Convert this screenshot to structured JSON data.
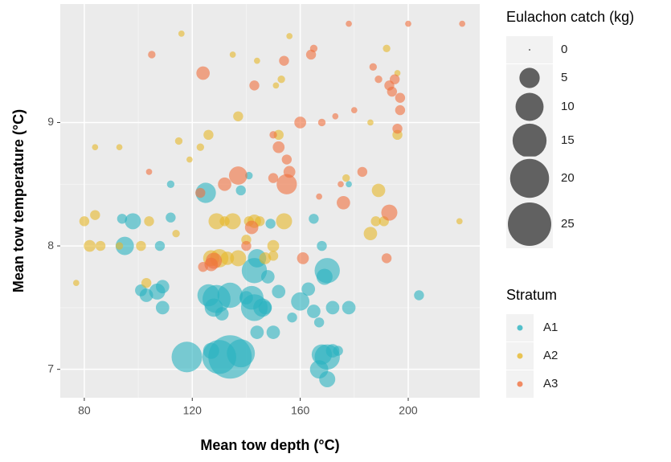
{
  "chart_data": {
    "type": "scatter",
    "x_label": "Mean tow depth (°C)",
    "y_label": "Mean tow temperature (°C)",
    "xlim": [
      71.1,
      226.5
    ],
    "ylim": [
      6.77,
      9.96
    ],
    "xticks": [
      80,
      120,
      160,
      200
    ],
    "yticks": [
      7,
      8,
      9
    ],
    "grid": true,
    "size_legend": {
      "title": "Eulachon catch (kg)",
      "breaks": [
        0,
        5,
        10,
        15,
        20,
        25
      ]
    },
    "color_legend_title": "Stratum",
    "series": [
      {
        "name": "A1",
        "color": "#2ab3c0",
        "x": [
          118,
          134,
          130,
          138,
          127,
          168,
          170,
          167,
          170,
          172,
          174,
          101,
          103,
          107,
          109,
          109,
          126,
          129,
          134,
          128,
          131,
          142,
          143,
          146,
          140,
          160,
          163,
          165,
          172,
          178,
          143,
          144,
          148,
          152,
          170,
          169,
          168,
          95,
          98,
          94,
          108,
          112,
          125,
          138,
          149,
          165,
          204,
          112,
          141,
          147,
          150,
          144,
          157,
          167,
          178
        ],
        "values": [
          7.1,
          7.1,
          7.1,
          7.13,
          7.15,
          7.12,
          7.1,
          7.0,
          6.92,
          7.15,
          7.15,
          7.64,
          7.6,
          7.63,
          7.67,
          7.5,
          7.6,
          7.57,
          7.6,
          7.5,
          7.45,
          7.58,
          7.5,
          7.5,
          7.58,
          7.55,
          7.65,
          7.47,
          7.5,
          7.5,
          7.8,
          7.9,
          7.75,
          7.63,
          7.8,
          7.75,
          8.0,
          8.0,
          8.2,
          8.22,
          8.0,
          8.23,
          8.43,
          8.45,
          8.18,
          8.22,
          7.6,
          8.5,
          8.57,
          7.5,
          7.3,
          7.3,
          7.42,
          7.38,
          8.5
        ],
        "sizes": [
          12,
          25,
          15,
          10,
          3,
          5,
          8,
          4,
          3,
          2,
          1,
          1.5,
          2,
          3,
          2,
          2,
          6,
          10,
          8,
          4,
          2,
          7,
          9,
          4,
          2,
          4,
          2,
          2,
          2,
          2,
          8,
          4,
          2,
          2,
          8,
          3,
          1,
          4,
          3,
          1,
          1,
          1,
          5,
          1,
          1,
          1,
          1,
          0.5,
          0.5,
          2,
          2,
          2,
          1,
          1,
          0.3
        ]
      },
      {
        "name": "A2",
        "color": "#e6b82a",
        "x": [
          77,
          80,
          82,
          84,
          86,
          84,
          93,
          93,
          101,
          104,
          103,
          114,
          116,
          115,
          119,
          123,
          126,
          129,
          132,
          135,
          140,
          141,
          143,
          145,
          154,
          150,
          152,
          147,
          150,
          127,
          130,
          133,
          137,
          137,
          135,
          151,
          153,
          156,
          186,
          188,
          191,
          189,
          196,
          177,
          192,
          196,
          219,
          186,
          144
        ],
        "values": [
          7.7,
          8.2,
          8.0,
          8.25,
          8.0,
          8.8,
          8.8,
          8.0,
          8.0,
          8.2,
          7.7,
          8.1,
          9.72,
          8.85,
          8.7,
          8.8,
          8.9,
          8.2,
          8.2,
          8.2,
          8.05,
          8.2,
          8.2,
          8.2,
          8.2,
          8.0,
          8.9,
          7.9,
          7.92,
          7.9,
          7.9,
          7.9,
          7.9,
          9.05,
          9.55,
          9.3,
          9.35,
          9.7,
          8.1,
          8.2,
          8.2,
          8.45,
          8.9,
          8.55,
          9.6,
          9.4,
          8.2,
          9.0,
          9.5
        ],
        "sizes": [
          0.3,
          1,
          1.5,
          1,
          1,
          0.3,
          0.3,
          0.5,
          1,
          1,
          1,
          0.5,
          0.3,
          0.5,
          0.3,
          0.5,
          1,
          3,
          1,
          3,
          1,
          1,
          2,
          1,
          3,
          1.5,
          1,
          1.5,
          1,
          3,
          4,
          2,
          3,
          1,
          0.3,
          0.3,
          0.5,
          0.3,
          2,
          1,
          1,
          2,
          1,
          0.5,
          0.5,
          0.3,
          0.3,
          0.3,
          0.3
        ]
      },
      {
        "name": "A3",
        "color": "#f0703e",
        "x": [
          105,
          124,
          143,
          154,
          164,
          165,
          160,
          150,
          152,
          155,
          156,
          155,
          150,
          137,
          132,
          123,
          128,
          127,
          124,
          142,
          140,
          161,
          176,
          183,
          193,
          192,
          193,
          195,
          194,
          197,
          197,
          196,
          187,
          189,
          200,
          178,
          220,
          180,
          173,
          168,
          104,
          175,
          167
        ],
        "values": [
          9.55,
          9.4,
          9.3,
          9.5,
          9.55,
          9.6,
          9.0,
          8.9,
          8.8,
          8.7,
          8.6,
          8.5,
          8.55,
          8.57,
          8.5,
          8.43,
          7.88,
          7.85,
          7.83,
          8.15,
          8.0,
          7.9,
          8.35,
          8.6,
          8.27,
          7.9,
          9.3,
          9.35,
          9.25,
          9.2,
          9.1,
          8.95,
          9.45,
          9.35,
          9.8,
          9.8,
          9.8,
          9.1,
          9.05,
          9.0,
          8.6,
          8.5,
          8.4
        ],
        "sizes": [
          0.5,
          2,
          1,
          1,
          1,
          0.5,
          1.5,
          0.5,
          1.5,
          1,
          1.5,
          5,
          1,
          4,
          2,
          1,
          3,
          2,
          1,
          2,
          1,
          1.5,
          2,
          1,
          3,
          1,
          1,
          1,
          1,
          1,
          1,
          1,
          0.5,
          0.5,
          0.3,
          0.3,
          0.3,
          0.3,
          0.3,
          0.5,
          0.3,
          0.3,
          0.3
        ]
      }
    ]
  }
}
